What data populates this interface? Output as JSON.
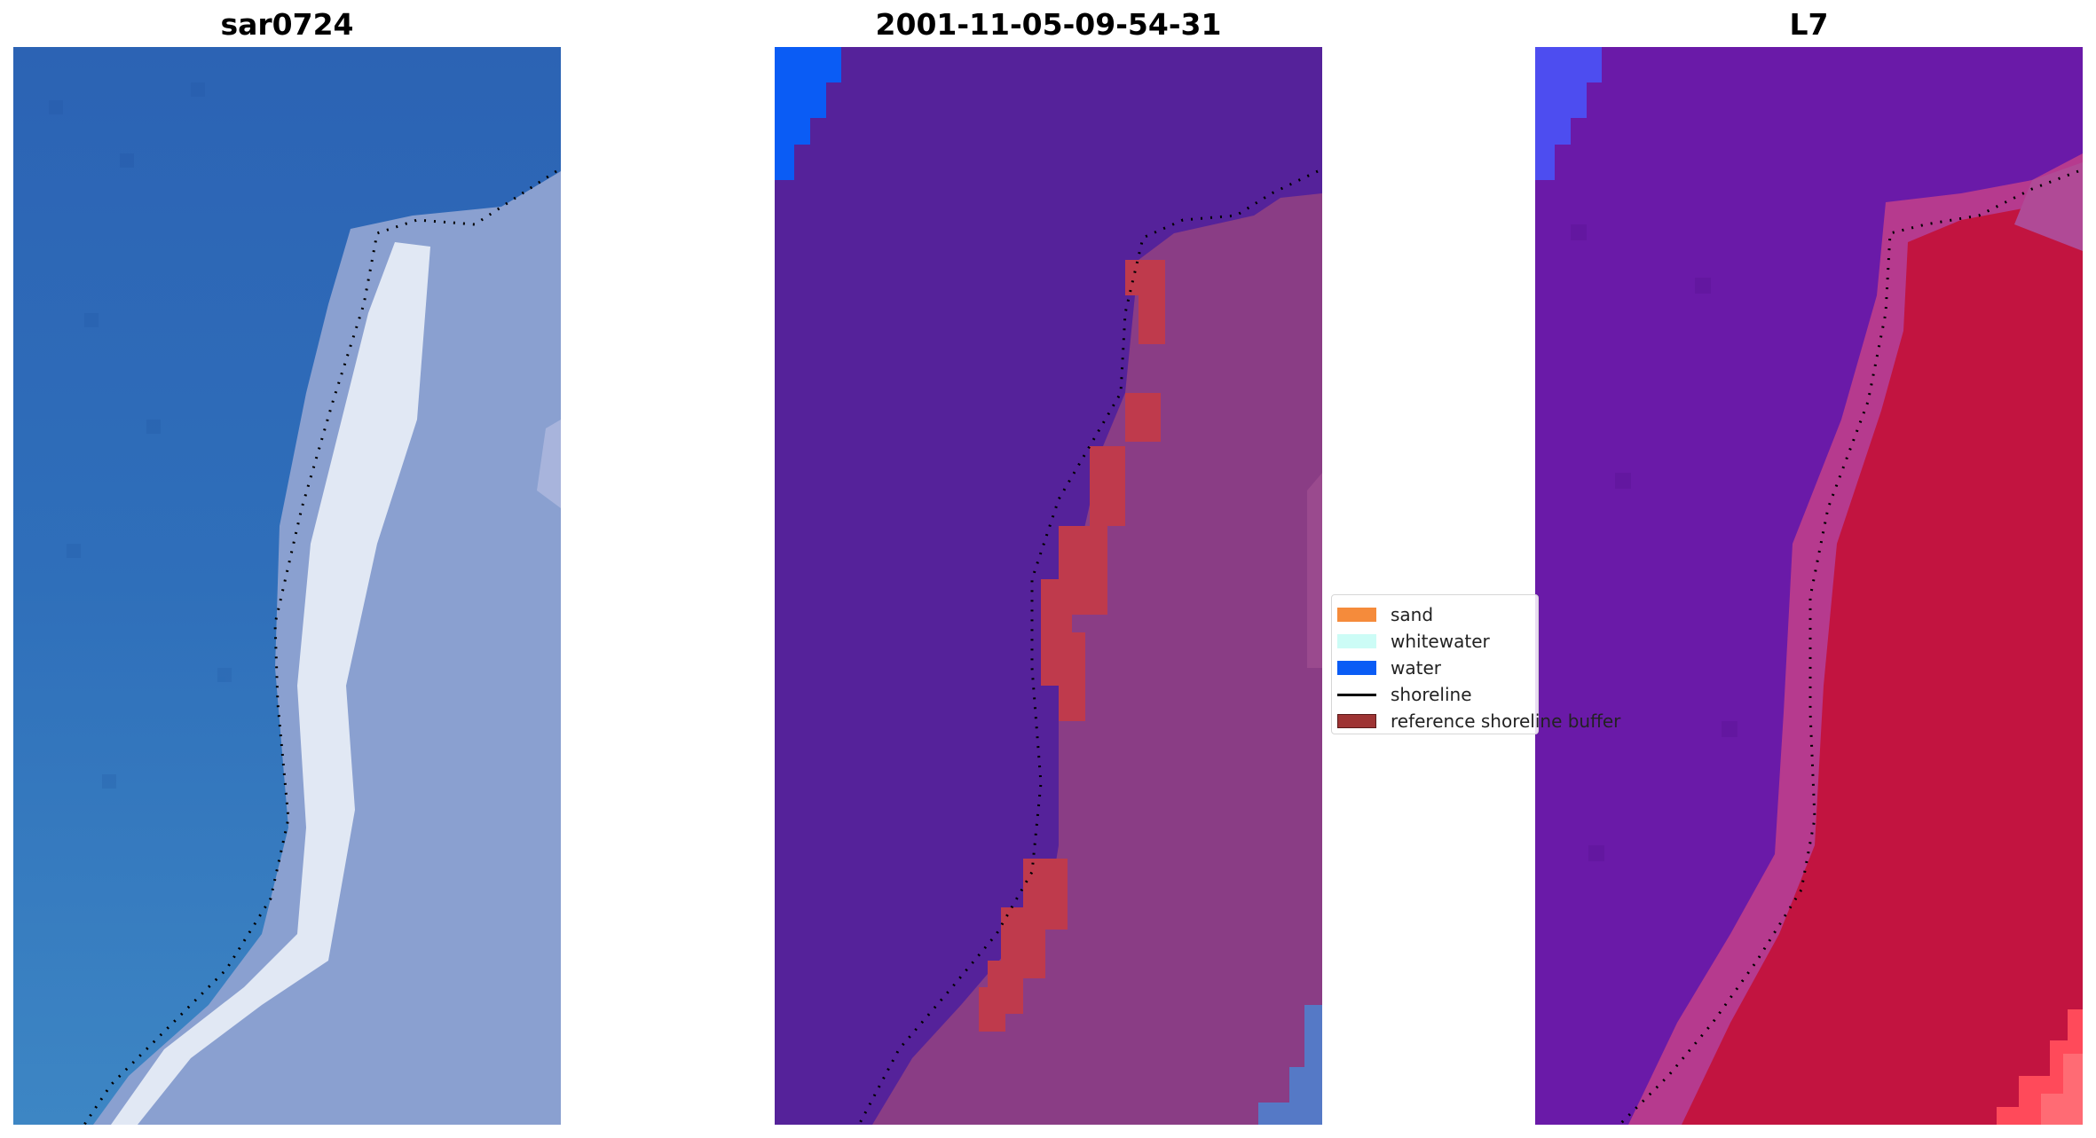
{
  "panels": [
    {
      "title": "sar0724"
    },
    {
      "title": "2001-11-05-09-54-31"
    },
    {
      "title": "L7"
    }
  ],
  "legend": {
    "items": [
      {
        "label": "sand",
        "kind": "patch",
        "color": "#f58b3b"
      },
      {
        "label": "whitewater",
        "kind": "patch",
        "color": "#ccfcf6"
      },
      {
        "label": "water",
        "kind": "patch",
        "color": "#0a5cf5"
      },
      {
        "label": "shoreline",
        "kind": "line",
        "color": "#000000"
      },
      {
        "label": "reference shoreline buffer",
        "kind": "patch",
        "color": "#9e3434"
      }
    ]
  },
  "colors": {
    "rgb_water": "#2f6db8",
    "rgb_land": "#8aa0d0",
    "rgb_beach": "#e6ecf6",
    "class_water": "#55229a",
    "class_land": "#8a3d85",
    "class_buffer": "#bf3a4c",
    "class_water_patch": "#0a5cf5",
    "nir_water": "#6a1aa8",
    "nir_land": "#c21440",
    "nir_edge": "#b63a8e",
    "nir_corner": "#ff4a5a"
  }
}
